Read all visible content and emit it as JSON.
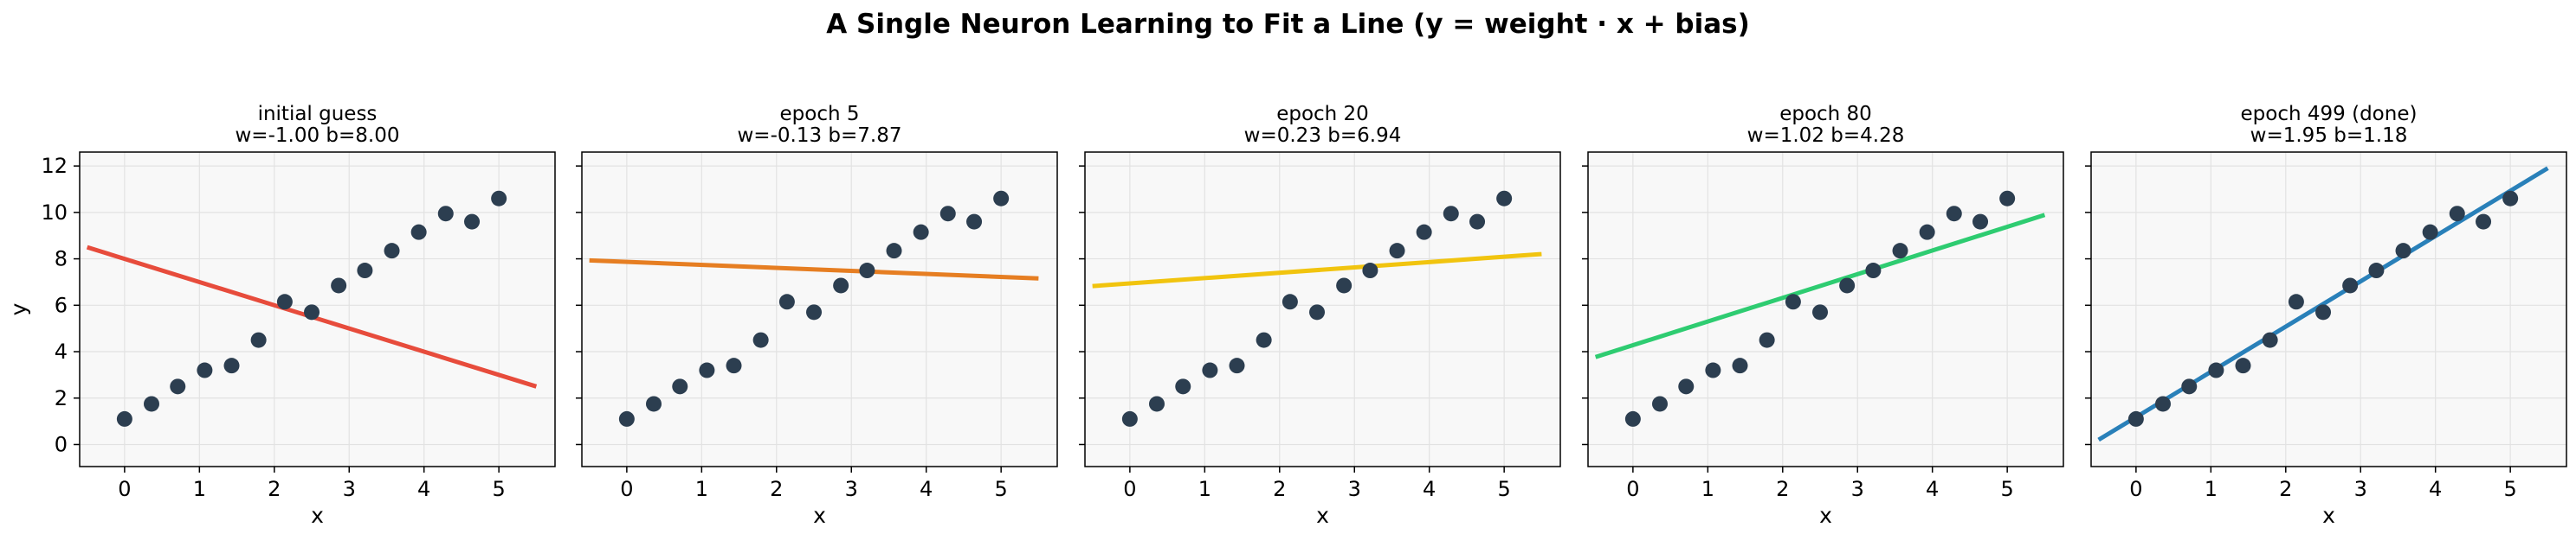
{
  "suptitle": "A Single Neuron Learning to Fit a Line  (y = weight · x + bias)",
  "chart_data": {
    "type": "scatter",
    "shared": {
      "xlabel": "x",
      "ylabel": "y",
      "xlim": [
        -0.6,
        5.75
      ],
      "ylim": [
        -0.95,
        12.6
      ],
      "xticks": [
        0,
        1,
        2,
        3,
        4,
        5
      ],
      "yticks": [
        0,
        2,
        4,
        6,
        8,
        10,
        12
      ],
      "grid": true,
      "points": {
        "x": [
          0.0,
          0.36,
          0.71,
          1.07,
          1.43,
          1.79,
          2.14,
          2.5,
          2.86,
          3.21,
          3.57,
          3.93,
          4.29,
          4.64,
          5.0
        ],
        "y": [
          1.1,
          1.75,
          2.5,
          3.2,
          3.4,
          4.5,
          6.15,
          5.7,
          6.85,
          7.5,
          8.35,
          9.15,
          9.95,
          9.6,
          10.6
        ],
        "color": "#2c3e50"
      },
      "line_x_range": [
        -0.5,
        5.5
      ]
    },
    "panels": [
      {
        "title_line1": "initial guess",
        "title_line2": "w=-1.00  b=8.00",
        "w": -1.0,
        "b": 8.0,
        "color": "#e74c3c"
      },
      {
        "title_line1": "epoch 5",
        "title_line2": "w=-0.13  b=7.87",
        "w": -0.13,
        "b": 7.87,
        "color": "#e67e22"
      },
      {
        "title_line1": "epoch 20",
        "title_line2": "w=0.23  b=6.94",
        "w": 0.23,
        "b": 6.94,
        "color": "#f1c40f"
      },
      {
        "title_line1": "epoch 80",
        "title_line2": "w=1.02  b=4.28",
        "w": 1.02,
        "b": 4.28,
        "color": "#2ecc71"
      },
      {
        "title_line1": "epoch 499 (done)",
        "title_line2": "w=1.95  b=1.18",
        "w": 1.95,
        "b": 1.18,
        "color": "#2980b9"
      }
    ]
  }
}
